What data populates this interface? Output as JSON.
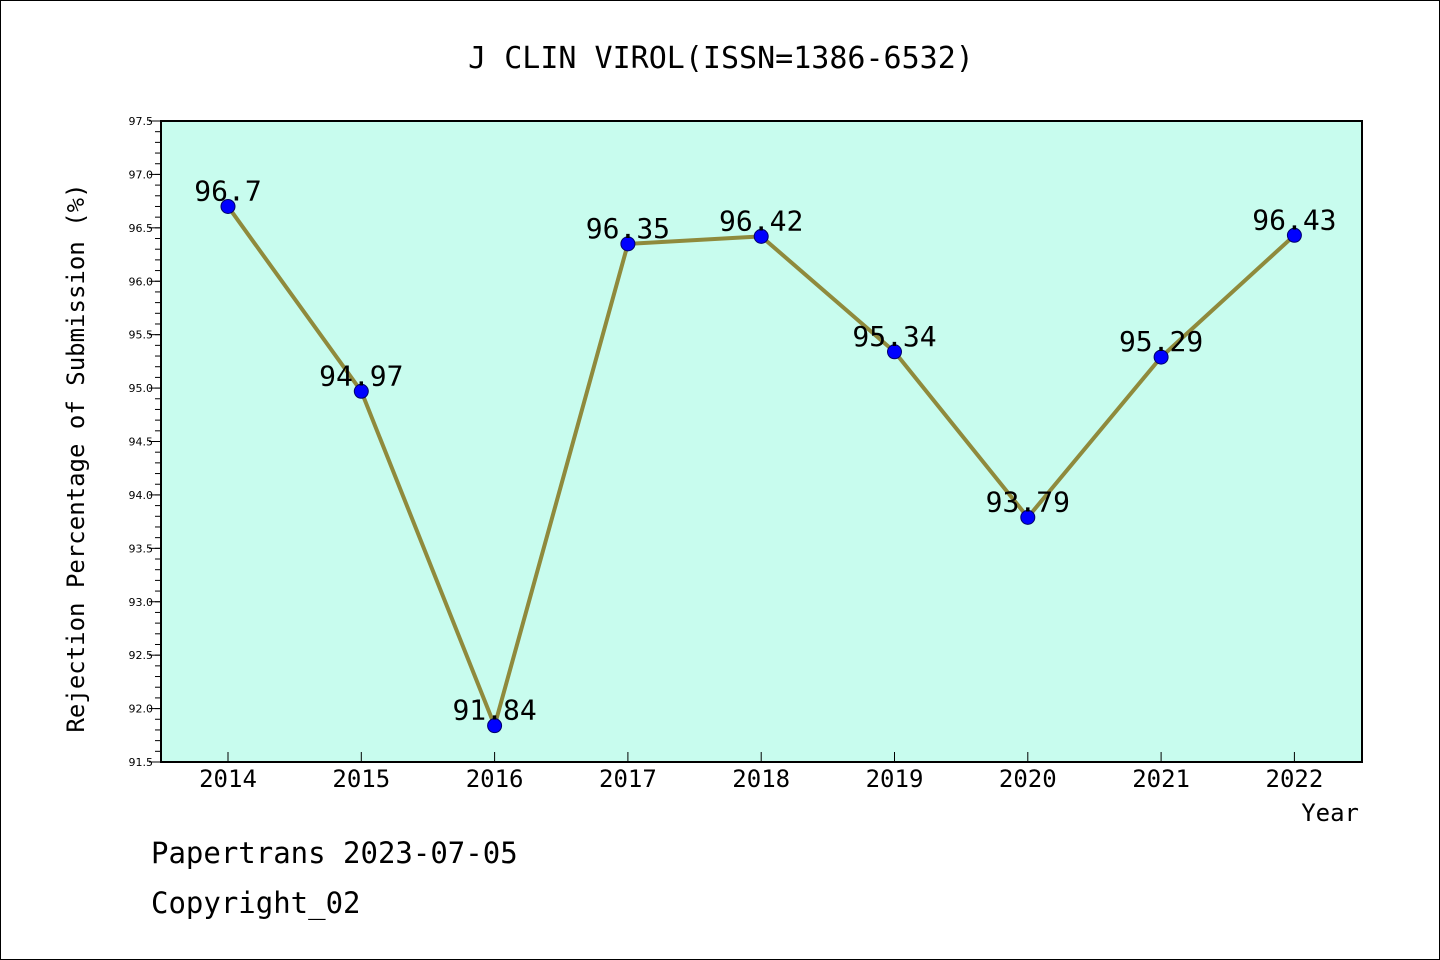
{
  "chart_data": {
    "type": "line",
    "title": "J CLIN VIROL(ISSN=1386-6532)",
    "xlabel": "Year",
    "ylabel": "Rejection Percentage of Submission (%)",
    "categories": [
      "2014",
      "2015",
      "2016",
      "2017",
      "2018",
      "2019",
      "2020",
      "2021",
      "2022"
    ],
    "values": [
      96.7,
      94.97,
      91.84,
      96.35,
      96.42,
      95.34,
      93.79,
      95.29,
      96.43
    ],
    "data_labels": [
      "96.7",
      "94.97",
      "91.84",
      "96.35",
      "96.42",
      "95.34",
      "93.79",
      "95.29",
      "96.43"
    ],
    "ylim": [
      91.5,
      97.5
    ],
    "yticks": [
      "91.5",
      "92.0",
      "92.5",
      "93.0",
      "93.5",
      "94.0",
      "94.5",
      "95.0",
      "95.5",
      "96.0",
      "96.5",
      "97.0",
      "97.5"
    ],
    "grid": false,
    "colors": {
      "plot_background": "#c8fcee",
      "line": "#8f8a3c",
      "marker": "#0000ff"
    }
  },
  "footer": {
    "line1": "Papertrans 2023-07-05",
    "line2": "Copyright_02"
  }
}
